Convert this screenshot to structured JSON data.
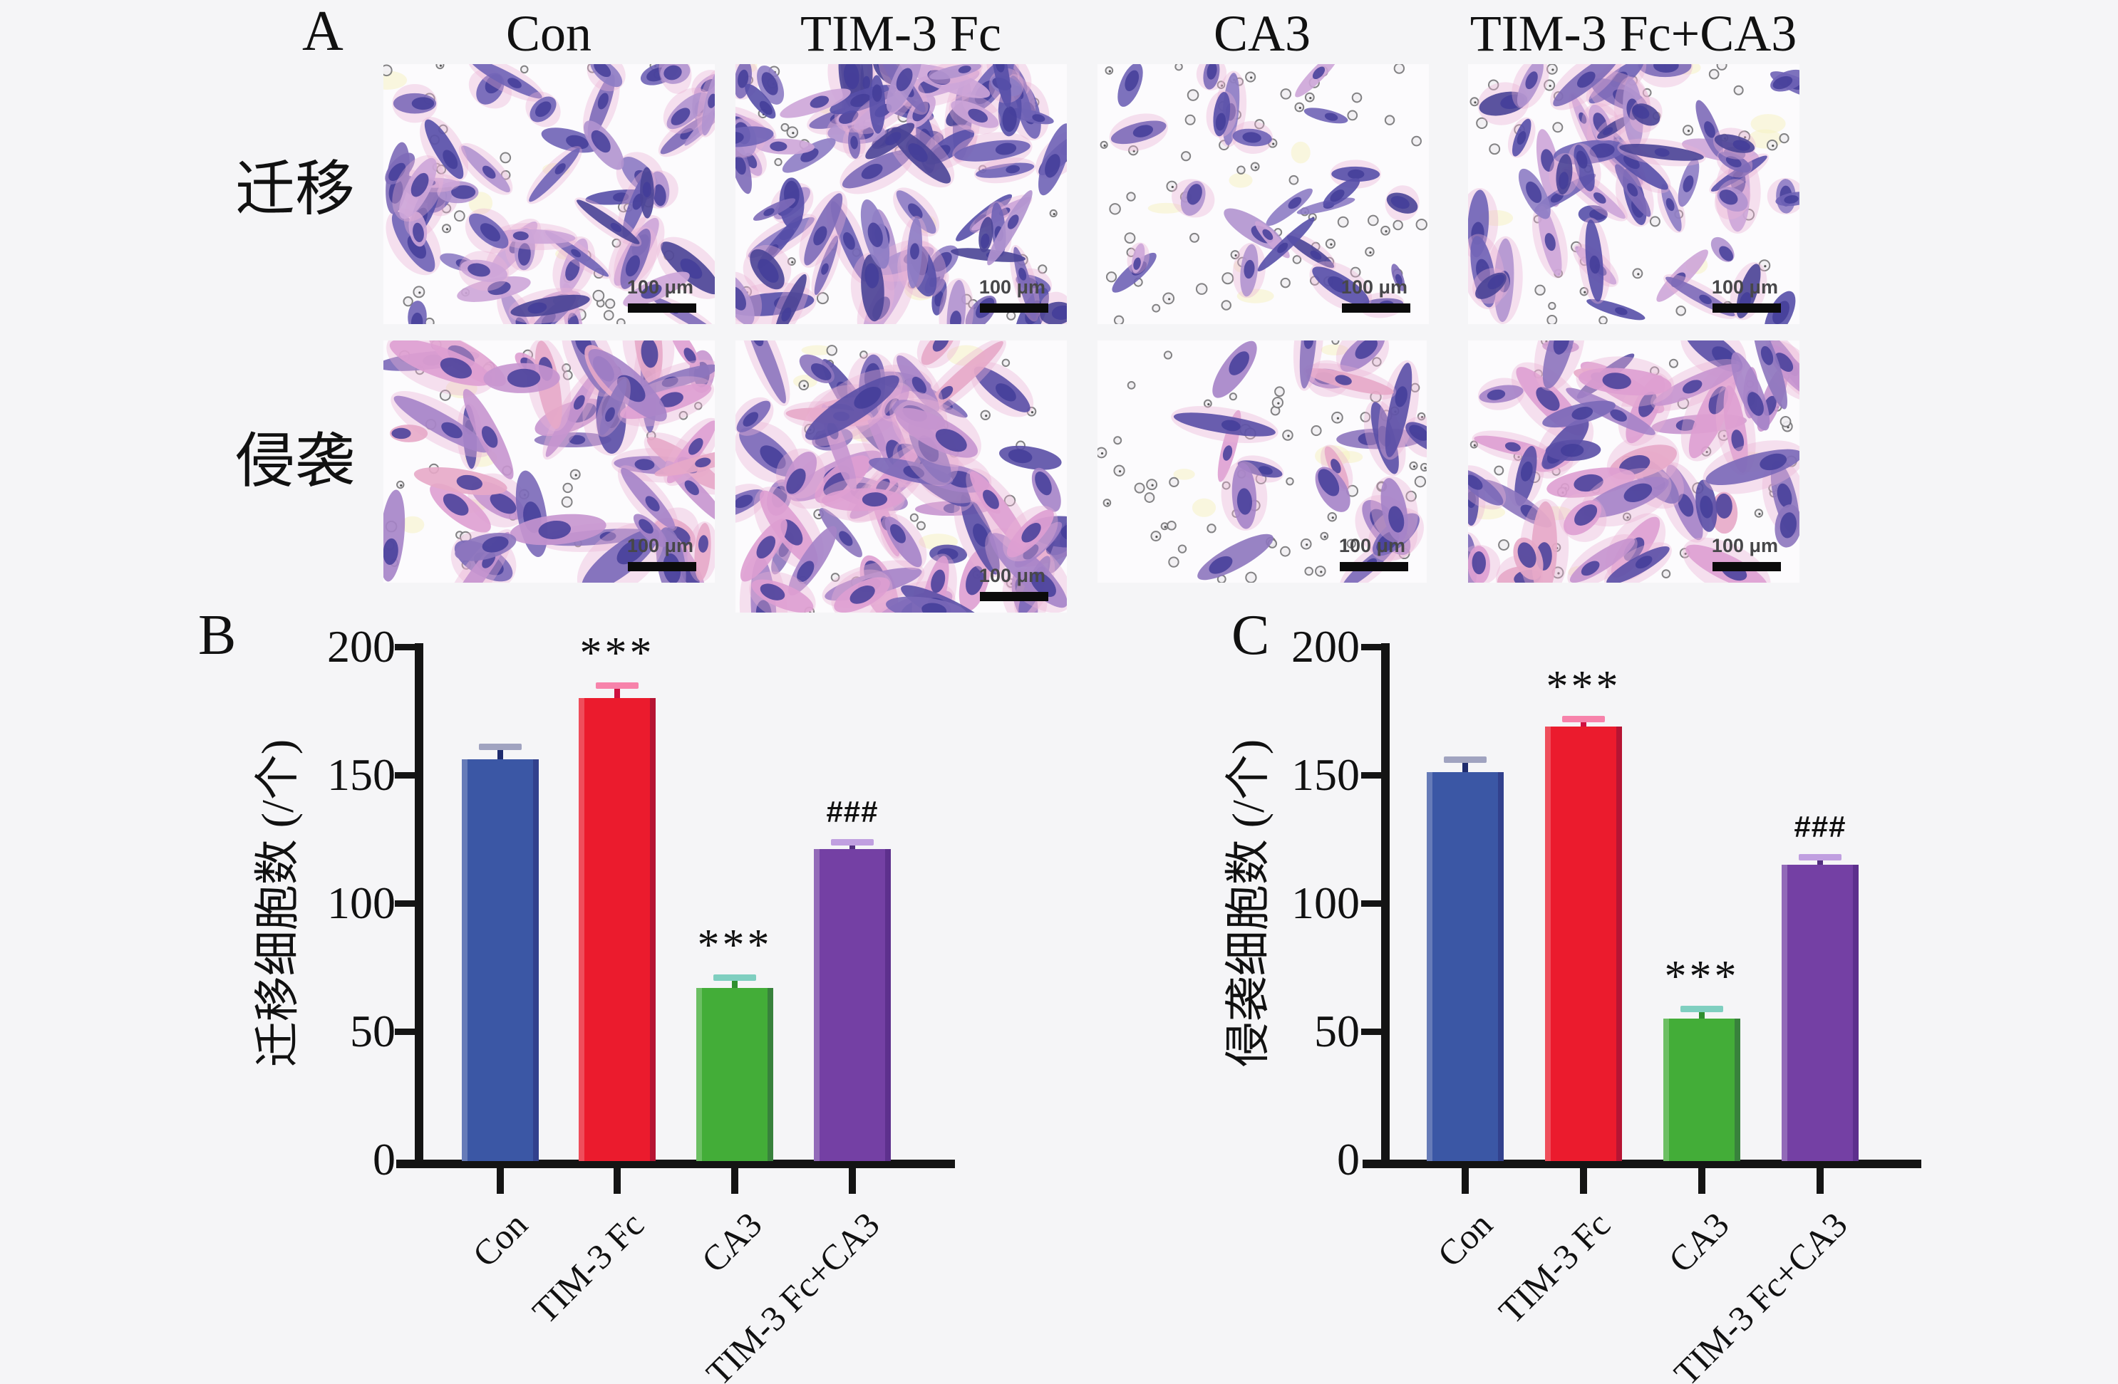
{
  "page_background": "#f5f5f7",
  "panelA": {
    "label": "A",
    "column_headers": [
      "Con",
      "TIM-3 Fc",
      "CA3",
      "TIM-3 Fc+CA3"
    ],
    "row_labels": [
      "迁移",
      "侵袭"
    ],
    "scale_bar_label": "100 μm",
    "stain_palettes": {
      "migration": [
        "#574fa8",
        "#6f63b6",
        "#8d7cc4",
        "#b193cf",
        "#cda5d8",
        "#7d6ab8",
        "#4a4496"
      ],
      "invasion": [
        "#5a4fa6",
        "#7a68b8",
        "#a583c8",
        "#c795cf",
        "#de9fd2",
        "#e7a8c8",
        "#8d76be"
      ],
      "nucleus": "#433d99",
      "halo": "#e9b2d6",
      "pore_fill": "#f1eff3",
      "pore_stroke": "#767678",
      "speck": "#f6f1bf",
      "image_background": "#fcfbfd"
    },
    "images": [
      {
        "assay": "迁移",
        "condition": "Con",
        "palette": "migration",
        "cells": 55,
        "pores": 34,
        "size": 1.0,
        "seed": 7,
        "cluster": "none"
      },
      {
        "assay": "迁移",
        "condition": "TIM-3 Fc",
        "palette": "migration",
        "cells": 88,
        "pores": 26,
        "size": 1.05,
        "seed": 13,
        "cluster": "none"
      },
      {
        "assay": "迁移",
        "condition": "CA3",
        "palette": "migration",
        "cells": 24,
        "pores": 64,
        "size": 0.95,
        "seed": 21,
        "cluster": "none"
      },
      {
        "assay": "迁移",
        "condition": "TIM-3 Fc+CA3",
        "palette": "migration",
        "cells": 52,
        "pores": 40,
        "size": 1.0,
        "seed": 5,
        "cluster": "none"
      },
      {
        "assay": "侵袭",
        "condition": "Con",
        "palette": "invasion",
        "cells": 46,
        "pores": 30,
        "size": 1.3,
        "seed": 17,
        "cluster": "none"
      },
      {
        "assay": "侵袭",
        "condition": "TIM-3 Fc",
        "palette": "invasion",
        "cells": 66,
        "pores": 26,
        "size": 1.3,
        "seed": 29,
        "cluster": "none"
      },
      {
        "assay": "侵袭",
        "condition": "CA3",
        "palette": "invasion",
        "cells": 20,
        "pores": 60,
        "size": 1.25,
        "seed": 3,
        "cluster": "right"
      },
      {
        "assay": "侵袭",
        "condition": "TIM-3 Fc+CA3",
        "palette": "invasion",
        "cells": 50,
        "pores": 34,
        "size": 1.2,
        "seed": 41,
        "cluster": "none"
      }
    ]
  },
  "chart_data": [
    {
      "type": "bar",
      "panel_label": "B",
      "title": "",
      "categories": [
        "Con",
        "TIM-3 Fc",
        "CA3",
        "TIM-3 Fc+CA3"
      ],
      "values": [
        156,
        180,
        67,
        121
      ],
      "errors": [
        5,
        5,
        4,
        3
      ],
      "significance": [
        "",
        "***",
        "***",
        "###"
      ],
      "ylabel": "迁移细胞数 (/个)",
      "xlabel": "",
      "ylim": [
        0,
        200
      ],
      "yticks": [
        0,
        50,
        100,
        150,
        200
      ],
      "grid": false,
      "legend": "none",
      "bar_colors": [
        "#3b57a5",
        "#eb1b2d",
        "#43ad38",
        "#7440a4"
      ],
      "error_stem_colors": [
        "#1f2c6e",
        "#cf1040",
        "#2f8f2f",
        "#53307f"
      ],
      "error_cap_colors": [
        "#a0a3c0",
        "#f783ab",
        "#7fcfc0",
        "#c09fe0"
      ],
      "axis_color": "#141414"
    },
    {
      "type": "bar",
      "panel_label": "C",
      "title": "",
      "categories": [
        "Con",
        "TIM-3 Fc",
        "CA3",
        "TIM-3 Fc+CA3"
      ],
      "values": [
        151,
        169,
        55,
        115
      ],
      "errors": [
        5,
        3,
        4,
        3
      ],
      "significance": [
        "",
        "***",
        "***",
        "###"
      ],
      "ylabel": "侵袭细胞数 (/个)",
      "xlabel": "",
      "ylim": [
        0,
        200
      ],
      "yticks": [
        0,
        50,
        100,
        150,
        200
      ],
      "grid": false,
      "legend": "none",
      "bar_colors": [
        "#3b57a5",
        "#eb1b2d",
        "#43ad38",
        "#7440a4"
      ],
      "error_stem_colors": [
        "#1f2c6e",
        "#cf1040",
        "#2f8f2f",
        "#53307f"
      ],
      "error_cap_colors": [
        "#a0a3c0",
        "#f783ab",
        "#7fcfc0",
        "#c09fe0"
      ],
      "axis_color": "#141414"
    }
  ]
}
